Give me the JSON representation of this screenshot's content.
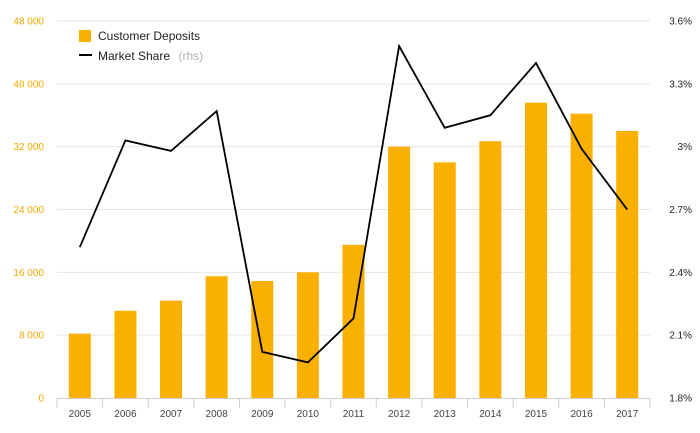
{
  "chart_data": {
    "type": "bar",
    "categories": [
      "2005",
      "2006",
      "2007",
      "2008",
      "2009",
      "2010",
      "2011",
      "2012",
      "2013",
      "2014",
      "2015",
      "2016",
      "2017"
    ],
    "series": [
      {
        "name": "Customer Deposits",
        "type": "bar",
        "axis": "left",
        "color": "#f9b000",
        "values": [
          8200,
          11100,
          12400,
          15500,
          14900,
          16000,
          19500,
          32000,
          30000,
          32700,
          37600,
          36200,
          34000
        ]
      },
      {
        "name": "Market Share",
        "legend_suffix": "(rhs)",
        "type": "line",
        "axis": "right",
        "color": "#000000",
        "values": [
          2.52,
          3.03,
          2.98,
          3.17,
          2.02,
          1.97,
          2.18,
          3.48,
          3.09,
          3.15,
          3.4,
          2.99,
          2.7
        ]
      }
    ],
    "y_left": {
      "ticks": [
        0,
        8000,
        16000,
        24000,
        32000,
        40000,
        48000
      ],
      "tick_labels": [
        "0",
        "8 000",
        "16 000",
        "24 000",
        "32 000",
        "40 000",
        "48 000"
      ],
      "ylim": [
        0,
        48000
      ],
      "color": "#f5a800"
    },
    "y_right": {
      "ticks": [
        1.8,
        2.1,
        2.4,
        2.7,
        3.0,
        3.3,
        3.6
      ],
      "tick_labels": [
        "1.8%",
        "2.1%",
        "2.4%",
        "2.7%",
        "3%",
        "3.3%",
        "3.6%"
      ],
      "ylim": [
        1.8,
        3.6
      ],
      "color": "#222222"
    },
    "grid": true,
    "legend_position": "top-left",
    "title": "",
    "xlabel": "",
    "ylabel": ""
  }
}
